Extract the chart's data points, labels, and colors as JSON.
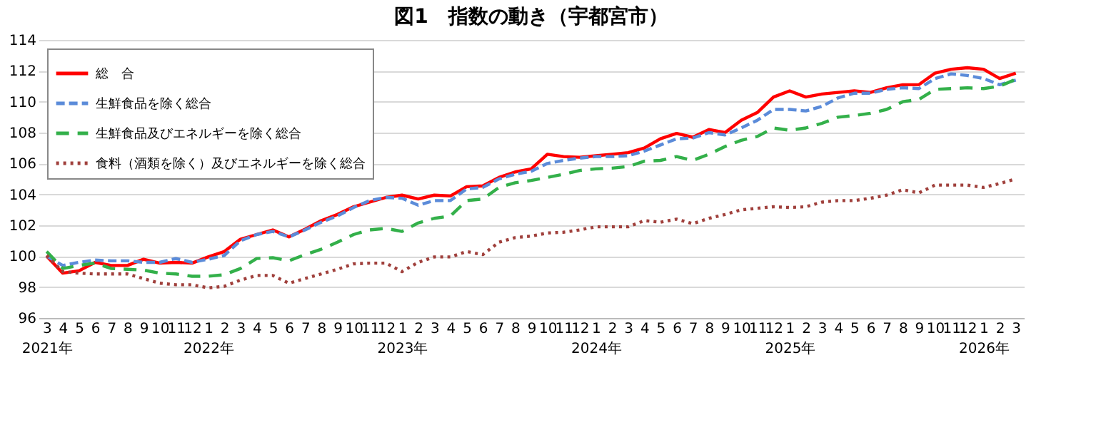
{
  "chart_data": {
    "type": "line",
    "title": "図1　指数の動き（宇都宮市）",
    "categories": [
      "3\n2021年",
      "4",
      "5",
      "6",
      "7",
      "8",
      "9",
      "10",
      "11",
      "12",
      "1\n2022年",
      "2",
      "3",
      "4",
      "5",
      "6",
      "7",
      "8",
      "9",
      "10",
      "11",
      "12",
      "1\n2023年",
      "2",
      "3",
      "4",
      "5",
      "6",
      "7",
      "8",
      "9",
      "10",
      "11",
      "12",
      "1\n2024年",
      "2",
      "3",
      "4",
      "5",
      "6",
      "7",
      "8",
      "9",
      "10",
      "11",
      "12",
      "1\n2025年",
      "2",
      "3",
      "4",
      "5",
      "6",
      "7",
      "8",
      "9",
      "10",
      "11",
      "12",
      "1\n2026年",
      "2",
      "3"
    ],
    "ylim": [
      96,
      114
    ],
    "yticks": [
      96,
      98,
      100,
      102,
      104,
      106,
      108,
      110,
      112,
      114
    ],
    "grid": "y",
    "legend": "top left",
    "marker": "none",
    "series": [
      {
        "name": "総　合",
        "color": "#ff0000",
        "line_style": "solid",
        "values": [
          100.0,
          98.9,
          99.05,
          99.6,
          99.4,
          99.4,
          99.8,
          99.55,
          99.6,
          99.55,
          99.95,
          100.3,
          101.1,
          101.4,
          101.7,
          101.25,
          101.75,
          102.3,
          102.7,
          103.2,
          103.5,
          103.8,
          103.95,
          103.7,
          103.95,
          103.9,
          104.5,
          104.55,
          105.1,
          105.45,
          105.65,
          106.6,
          106.45,
          106.4,
          106.5,
          106.6,
          106.7,
          107.0,
          107.6,
          107.95,
          107.7,
          108.2,
          108.0,
          108.8,
          109.3,
          110.3,
          110.7,
          110.3,
          110.5,
          110.6,
          110.7,
          110.6,
          110.9,
          111.1,
          111.1,
          111.85,
          112.1,
          112.2,
          112.1,
          111.5,
          111.85
        ]
      },
      {
        "name": "生鮮食品を除く総合",
        "color": "#5b8bd9",
        "line_style": "dashed",
        "values": [
          100.0,
          99.4,
          99.6,
          99.75,
          99.7,
          99.7,
          99.6,
          99.6,
          99.85,
          99.6,
          99.8,
          100.05,
          101.0,
          101.4,
          101.6,
          101.25,
          101.7,
          102.2,
          102.6,
          103.15,
          103.6,
          103.8,
          103.75,
          103.3,
          103.6,
          103.6,
          104.35,
          104.45,
          105.0,
          105.3,
          105.5,
          106.0,
          106.2,
          106.35,
          106.45,
          106.45,
          106.5,
          106.8,
          107.2,
          107.6,
          107.65,
          108.0,
          107.85,
          108.3,
          108.8,
          109.5,
          109.5,
          109.4,
          109.7,
          110.25,
          110.55,
          110.55,
          110.8,
          110.9,
          110.85,
          111.5,
          111.8,
          111.7,
          111.5,
          111.1,
          111.4
        ]
      },
      {
        "name": "生鮮食品及びエネルギーを除く総合",
        "color": "#33b04a",
        "line_style": "longdash",
        "values": [
          100.3,
          99.2,
          99.4,
          99.55,
          99.2,
          99.15,
          99.1,
          98.9,
          98.85,
          98.7,
          98.7,
          98.8,
          99.2,
          99.85,
          99.9,
          99.7,
          100.1,
          100.45,
          100.9,
          101.4,
          101.7,
          101.8,
          101.6,
          102.15,
          102.45,
          102.6,
          103.6,
          103.7,
          104.45,
          104.75,
          104.9,
          105.1,
          105.3,
          105.55,
          105.65,
          105.7,
          105.8,
          106.15,
          106.2,
          106.45,
          106.2,
          106.6,
          107.1,
          107.5,
          107.75,
          108.3,
          108.15,
          108.3,
          108.6,
          109.0,
          109.1,
          109.25,
          109.5,
          110.0,
          110.15,
          110.8,
          110.85,
          110.9,
          110.85,
          111.0,
          111.45
        ]
      },
      {
        "name": "食料（酒類を除く）及びエネルギーを除く総合",
        "color": "#a0403c",
        "line_style": "dotted",
        "values": [
          100.05,
          99.0,
          98.9,
          98.85,
          98.85,
          98.85,
          98.55,
          98.25,
          98.15,
          98.15,
          97.95,
          98.05,
          98.45,
          98.75,
          98.75,
          98.25,
          98.55,
          98.85,
          99.15,
          99.5,
          99.55,
          99.55,
          99.0,
          99.6,
          99.95,
          99.95,
          100.3,
          100.1,
          100.9,
          101.2,
          101.3,
          101.5,
          101.55,
          101.7,
          101.9,
          101.9,
          101.9,
          102.3,
          102.2,
          102.4,
          102.1,
          102.45,
          102.7,
          103.0,
          103.1,
          103.2,
          103.15,
          103.2,
          103.5,
          103.6,
          103.6,
          103.75,
          103.95,
          104.3,
          104.1,
          104.6,
          104.6,
          104.6,
          104.45,
          104.7,
          105.0
        ]
      }
    ]
  }
}
